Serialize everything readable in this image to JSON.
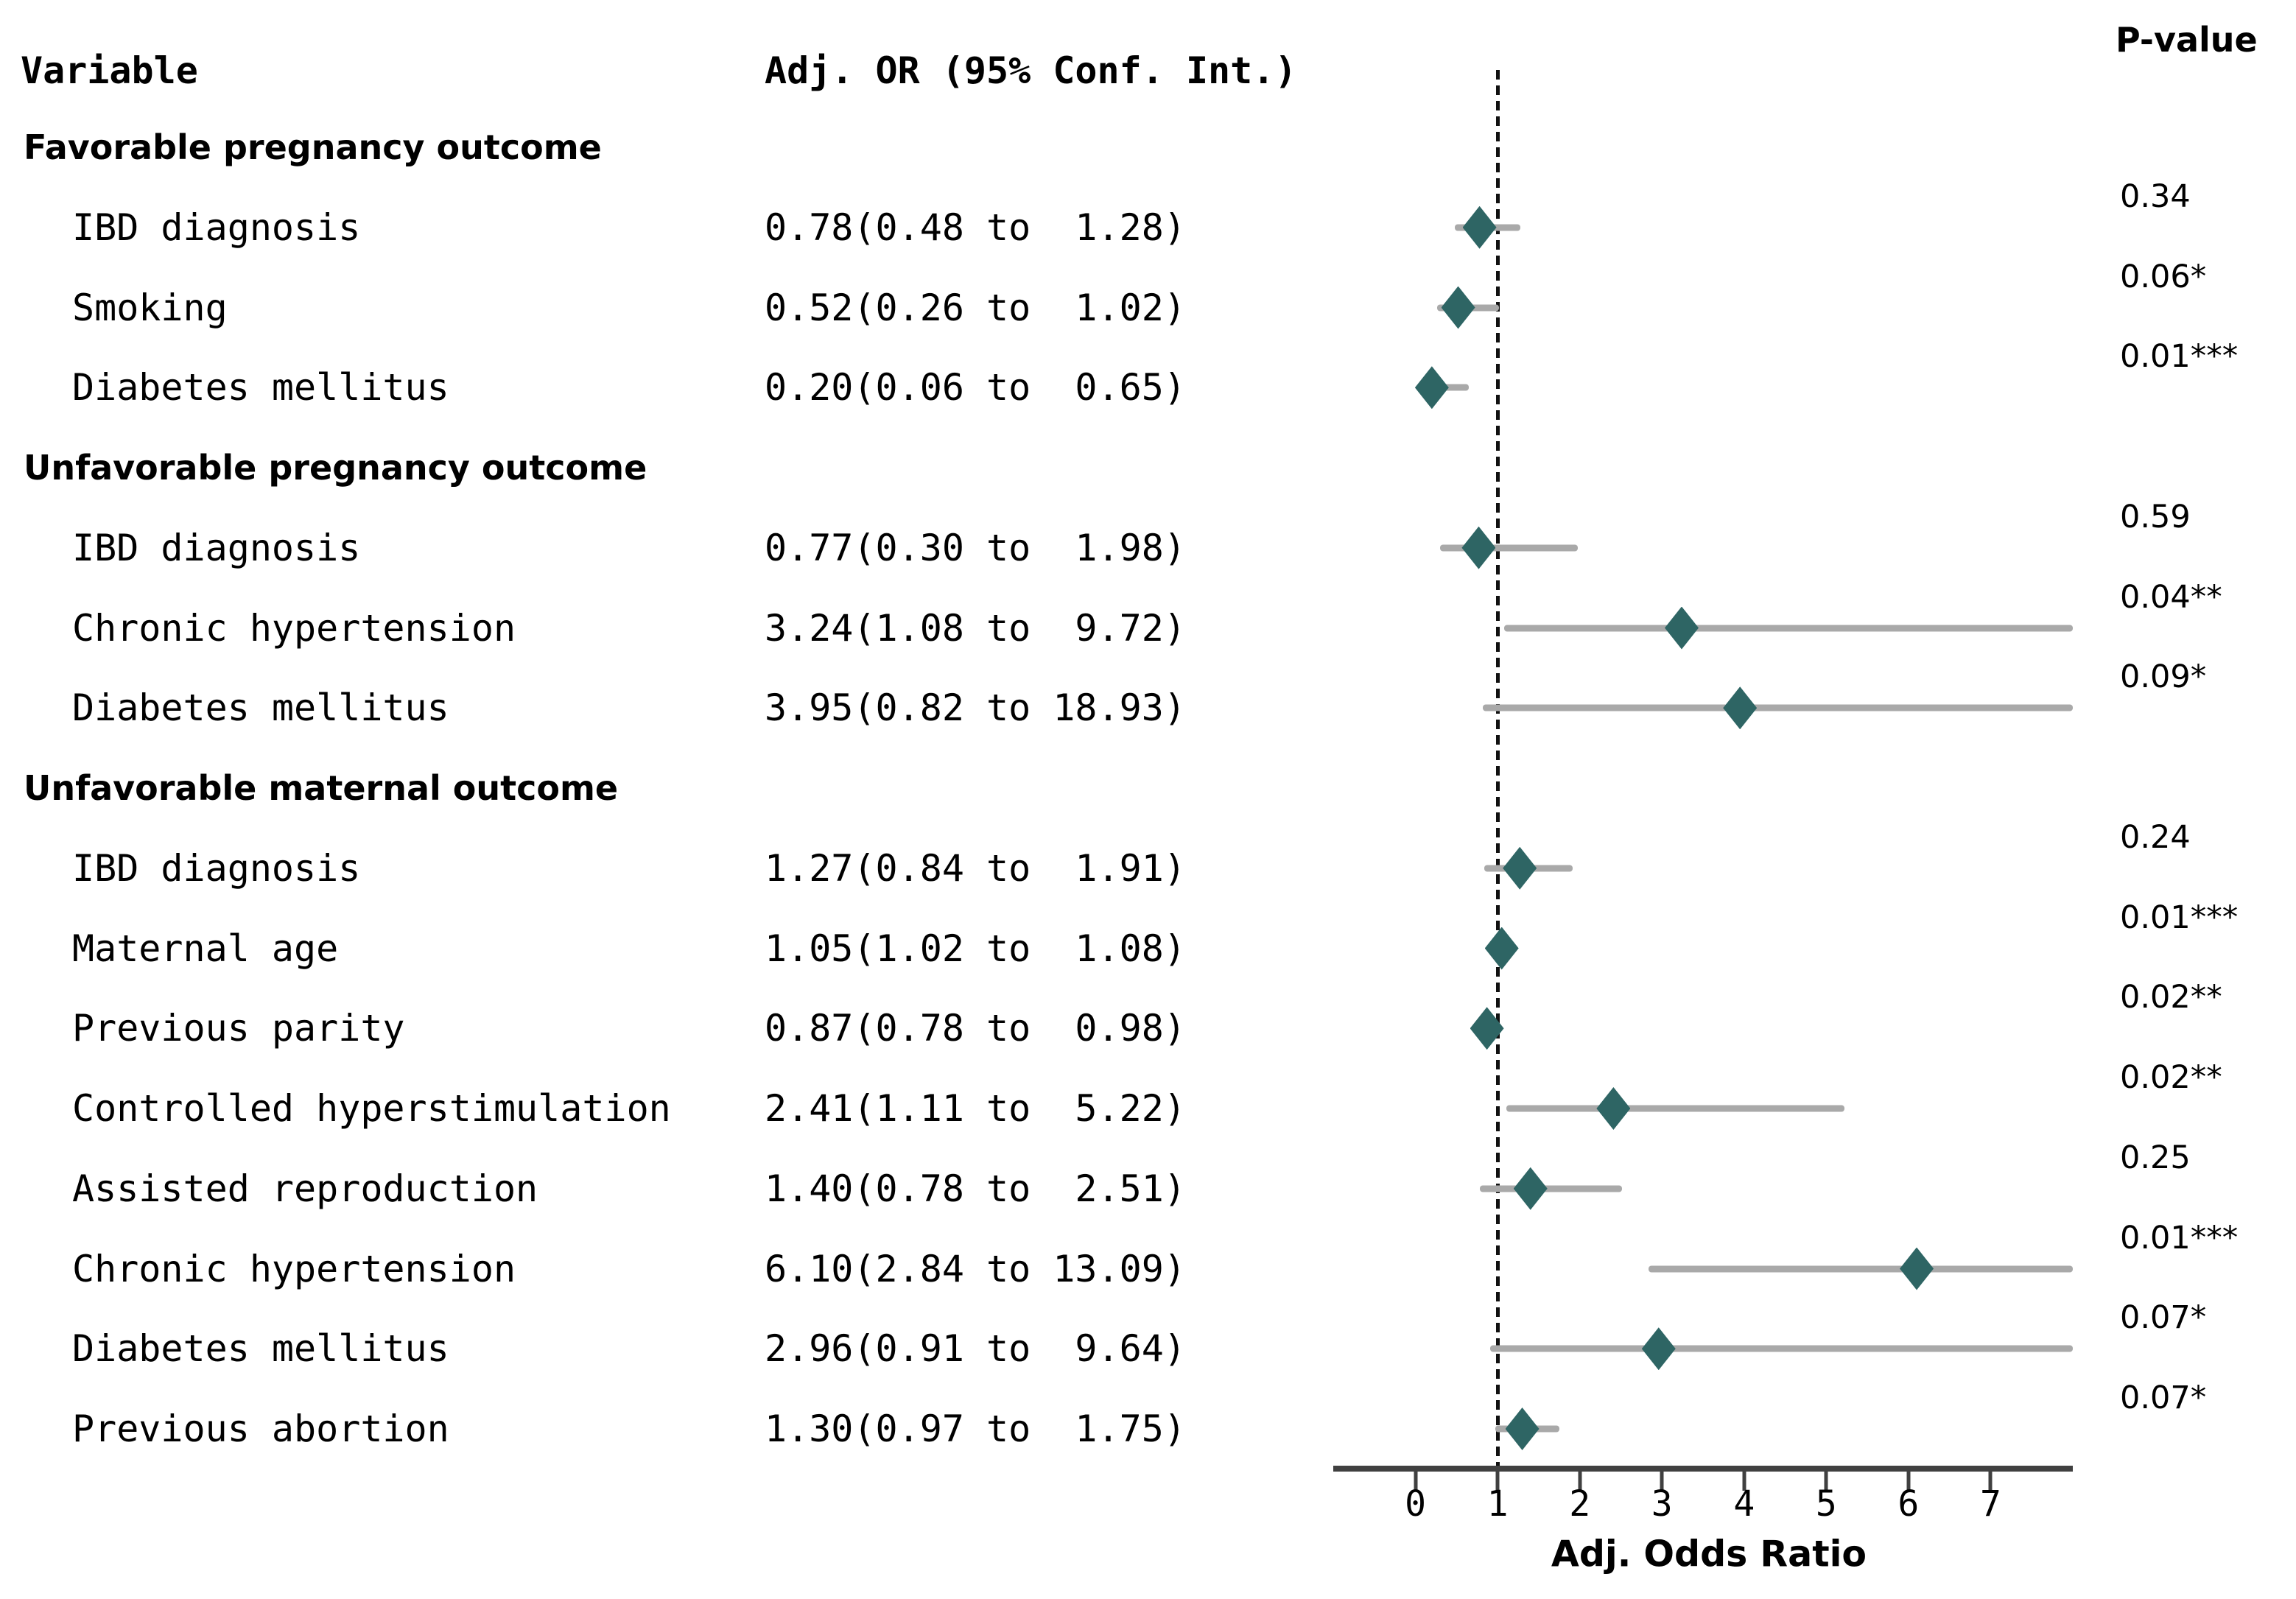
{
  "headers": {
    "variable": "Variable",
    "or": "Adj. OR (95% Conf. Int.)",
    "p": "P-value"
  },
  "chart_data": {
    "type": "forest",
    "xlabel": "Adj. Odds Ratio",
    "x_ticks": [
      0,
      1,
      2,
      3,
      4,
      5,
      6,
      7
    ],
    "x_range": [
      -1,
      8
    ],
    "reference_line": 1,
    "grid": false,
    "colors": {
      "diamond": "#2e6564",
      "ci_line": "#a9a9a9",
      "axis": "#404040",
      "reference": "#111111",
      "text": "#000000"
    },
    "rows": [
      {
        "type": "section",
        "label": "Favorable pregnancy outcome"
      },
      {
        "type": "item",
        "label": "IBD diagnosis",
        "or_text": "0.78(0.48 to  1.28)",
        "or": 0.78,
        "ci_low": 0.48,
        "ci_high": 1.28,
        "p": "0.34"
      },
      {
        "type": "item",
        "label": "Smoking",
        "or_text": "0.52(0.26 to  1.02)",
        "or": 0.52,
        "ci_low": 0.26,
        "ci_high": 1.02,
        "p": "0.06*"
      },
      {
        "type": "item",
        "label": "Diabetes mellitus",
        "or_text": "0.20(0.06 to  0.65)",
        "or": 0.2,
        "ci_low": 0.06,
        "ci_high": 0.65,
        "p": "0.01***"
      },
      {
        "type": "section",
        "label": "Unfavorable pregnancy outcome"
      },
      {
        "type": "item",
        "label": "IBD diagnosis",
        "or_text": "0.77(0.30 to  1.98)",
        "or": 0.77,
        "ci_low": 0.3,
        "ci_high": 1.98,
        "p": "0.59"
      },
      {
        "type": "item",
        "label": "Chronic hypertension",
        "or_text": "3.24(1.08 to  9.72)",
        "or": 3.24,
        "ci_low": 1.08,
        "ci_high": 9.72,
        "p": "0.04**"
      },
      {
        "type": "item",
        "label": "Diabetes mellitus",
        "or_text": "3.95(0.82 to 18.93)",
        "or": 3.95,
        "ci_low": 0.82,
        "ci_high": 18.93,
        "p": "0.09*"
      },
      {
        "type": "section",
        "label": "Unfavorable maternal outcome"
      },
      {
        "type": "item",
        "label": "IBD diagnosis",
        "or_text": "1.27(0.84 to  1.91)",
        "or": 1.27,
        "ci_low": 0.84,
        "ci_high": 1.91,
        "p": "0.24"
      },
      {
        "type": "item",
        "label": "Maternal age",
        "or_text": "1.05(1.02 to  1.08)",
        "or": 1.05,
        "ci_low": 1.02,
        "ci_high": 1.08,
        "p": "0.01***"
      },
      {
        "type": "item",
        "label": "Previous parity",
        "or_text": "0.87(0.78 to  0.98)",
        "or": 0.87,
        "ci_low": 0.78,
        "ci_high": 0.98,
        "p": "0.02**"
      },
      {
        "type": "item",
        "label": "Controlled hyperstimulation",
        "or_text": "2.41(1.11 to  5.22)",
        "or": 2.41,
        "ci_low": 1.11,
        "ci_high": 5.22,
        "p": "0.02**"
      },
      {
        "type": "item",
        "label": "Assisted reproduction",
        "or_text": "1.40(0.78 to  2.51)",
        "or": 1.4,
        "ci_low": 0.78,
        "ci_high": 2.51,
        "p": "0.25"
      },
      {
        "type": "item",
        "label": "Chronic hypertension",
        "or_text": "6.10(2.84 to 13.09)",
        "or": 6.1,
        "ci_low": 2.84,
        "ci_high": 13.09,
        "p": "0.01***"
      },
      {
        "type": "item",
        "label": "Diabetes mellitus",
        "or_text": "2.96(0.91 to  9.64)",
        "or": 2.96,
        "ci_low": 0.91,
        "ci_high": 9.64,
        "p": "0.07*"
      },
      {
        "type": "item",
        "label": "Previous abortion",
        "or_text": "1.30(0.97 to  1.75)",
        "or": 1.3,
        "ci_low": 0.97,
        "ci_high": 1.75,
        "p": "0.07*"
      }
    ]
  }
}
